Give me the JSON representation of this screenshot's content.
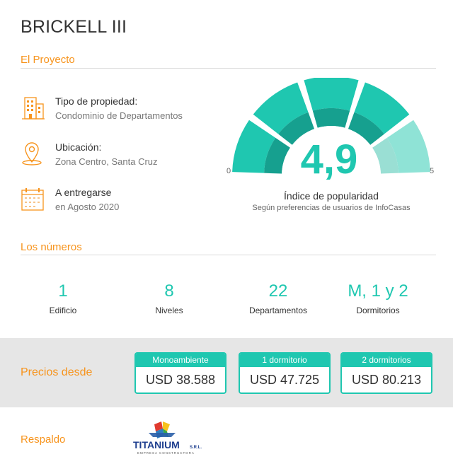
{
  "title": "BRICKELL III",
  "project": {
    "heading": "El Proyecto",
    "items": [
      {
        "icon": "building-icon",
        "label": "Tipo de propiedad:",
        "value": "Condominio de Departamentos"
      },
      {
        "icon": "location-pin-icon",
        "label": "Ubicación:",
        "value": "Zona Centro, Santa Cruz"
      },
      {
        "icon": "calendar-icon",
        "label": "A entregarse",
        "value": "en Agosto 2020"
      }
    ]
  },
  "gauge": {
    "value": "4,9",
    "min": "0",
    "max": "5",
    "label": "Índice de popularidad",
    "sublabel": "Según preferencias de usuarios de InfoCasas",
    "color_main": "#1fc7b0",
    "color_dark": "#16a08f",
    "color_light": "#8fe3d6"
  },
  "numbers": {
    "heading": "Los números",
    "items": [
      {
        "value": "1",
        "label": "Edificio"
      },
      {
        "value": "8",
        "label": "Niveles"
      },
      {
        "value": "22",
        "label": "Departamentos"
      },
      {
        "value": "M, 1 y 2",
        "label": "Dormitorios"
      }
    ]
  },
  "prices": {
    "heading": "Precios desde",
    "items": [
      {
        "type": "Monoambiente",
        "price": "USD 38.588"
      },
      {
        "type": "1 dormitorio",
        "price": "USD 47.725"
      },
      {
        "type": "2 dormitorios",
        "price": "USD 80.213"
      }
    ]
  },
  "backing": {
    "heading": "Respaldo",
    "logo_text": "TITANIUM",
    "logo_suffix": "S.R.L.",
    "logo_tagline": "EMPRESA CONSTRUCTORA"
  },
  "colors": {
    "accent": "#f7941d",
    "teal": "#1fc7b0",
    "band": "#e6e6e6"
  }
}
